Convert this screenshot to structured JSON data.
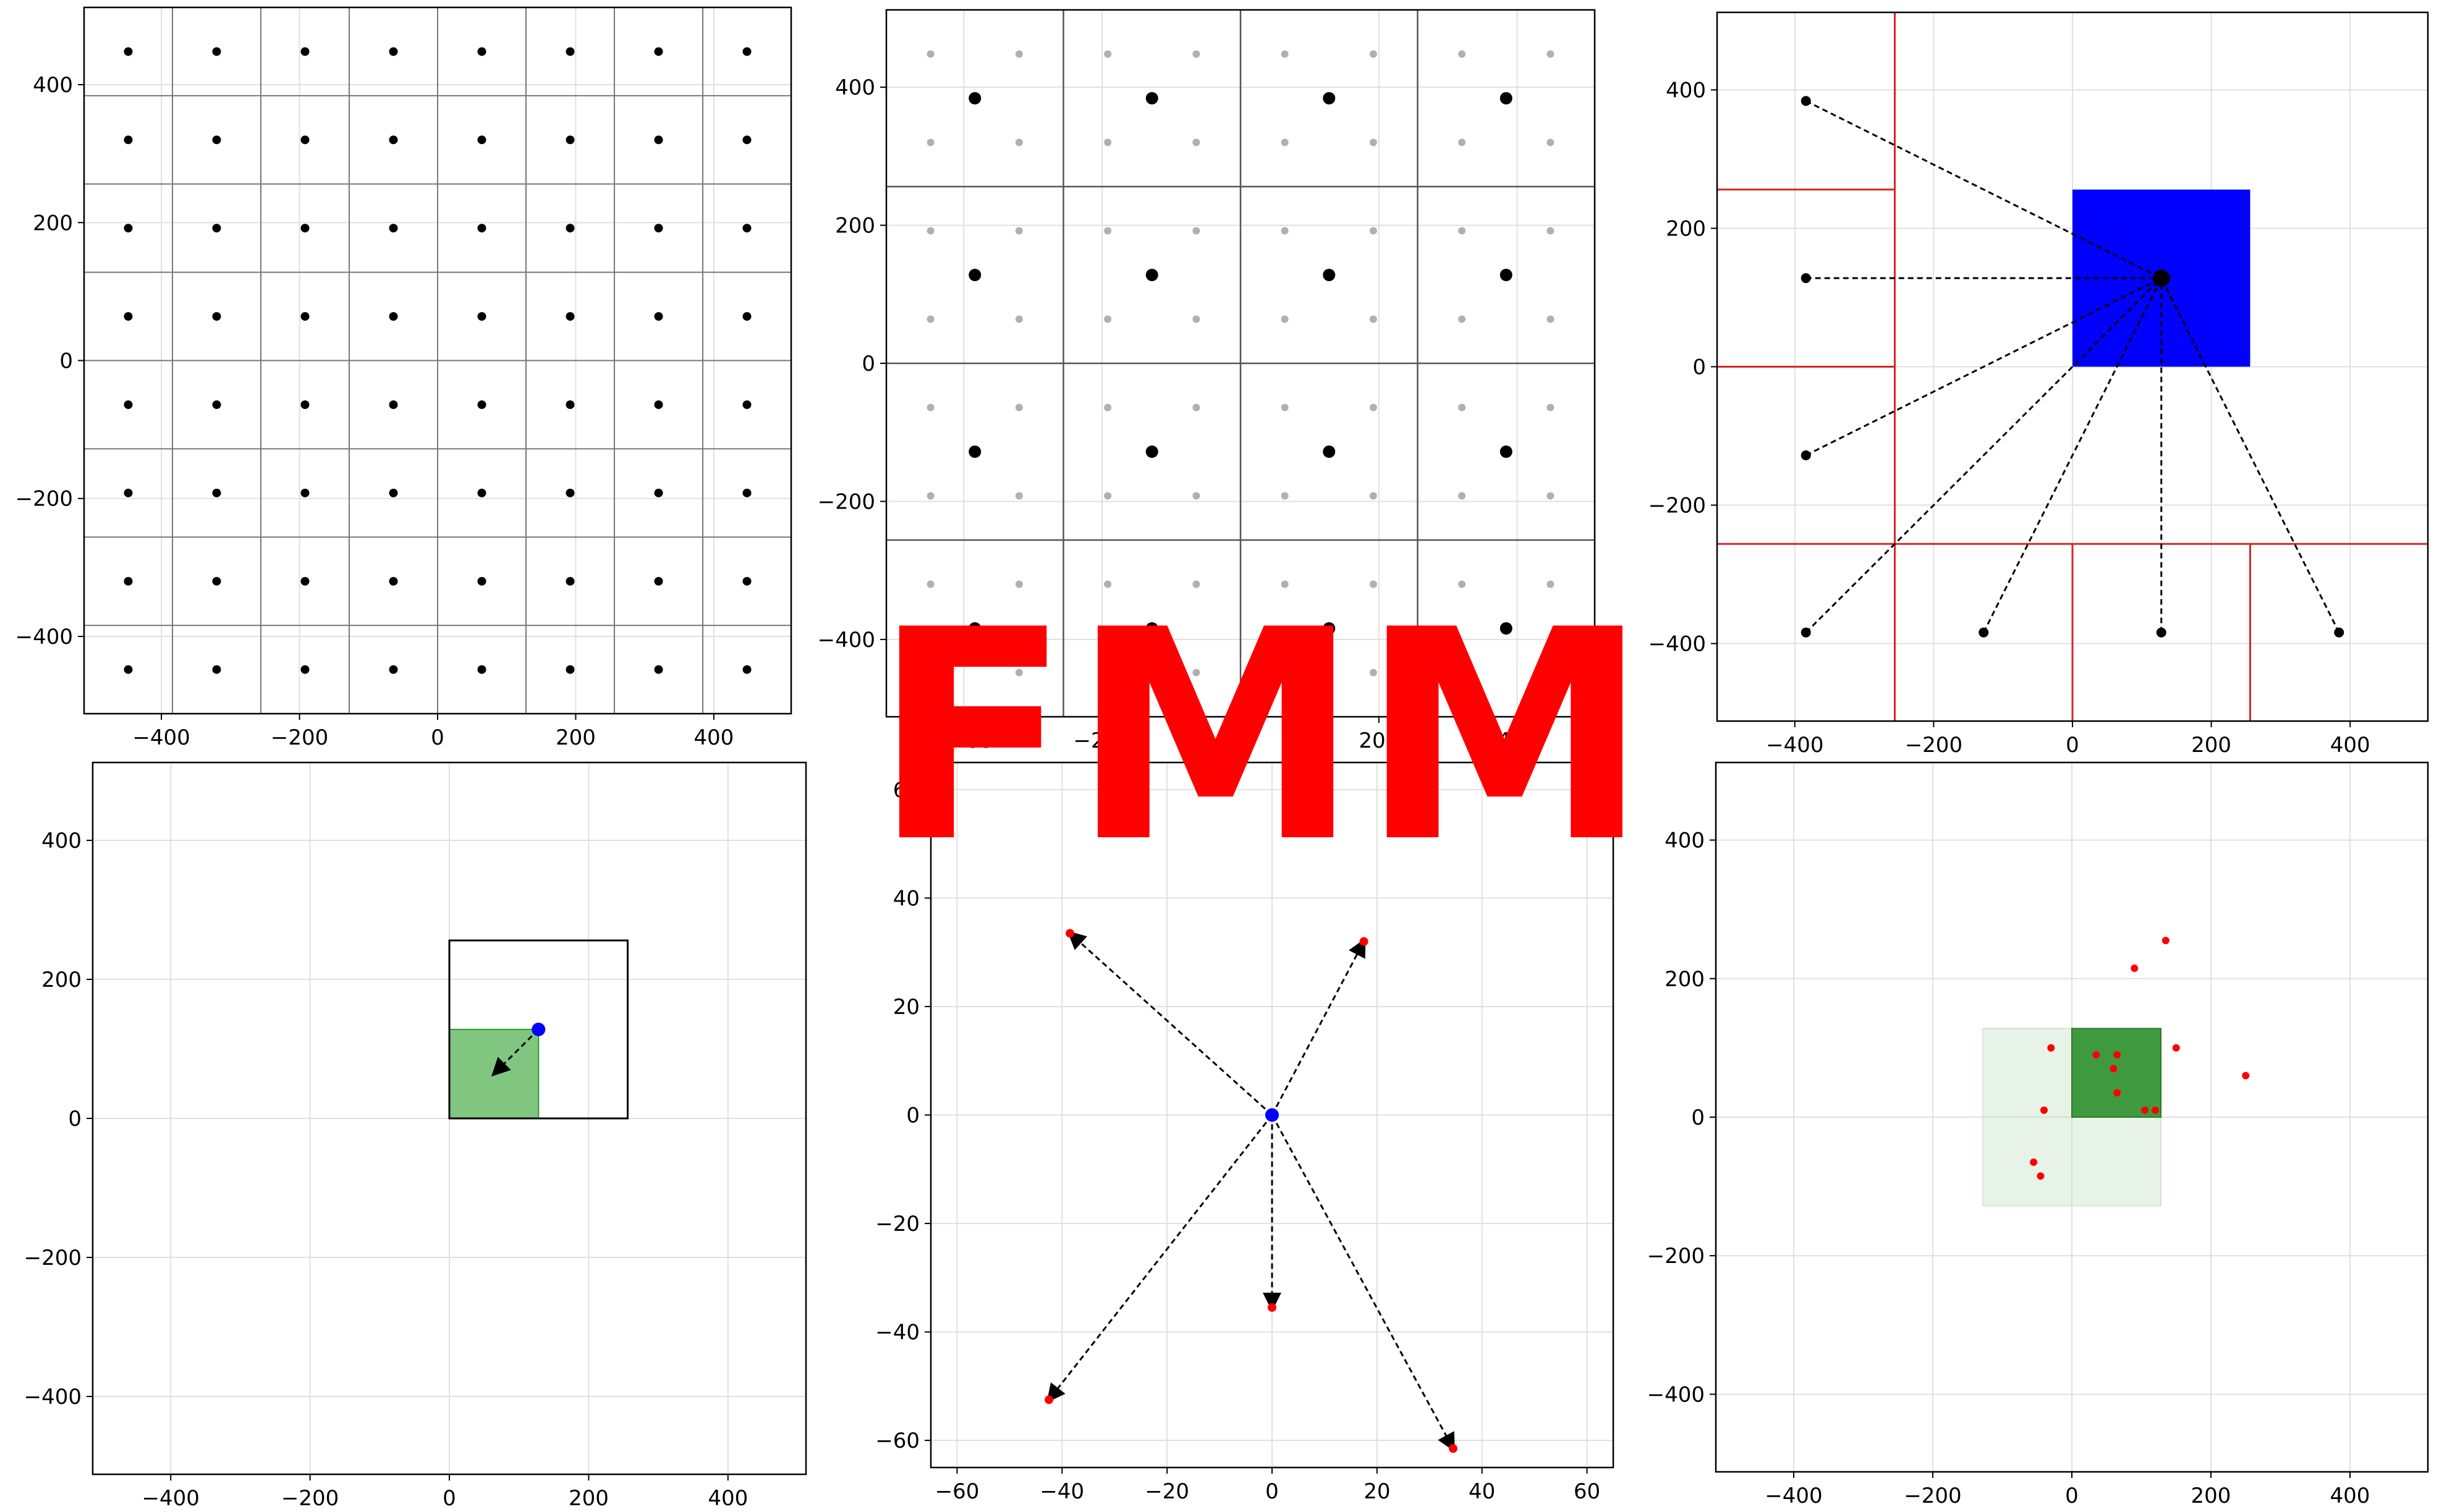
{
  "overlay": {
    "text": "FMM",
    "color": "#ff0000"
  },
  "colors": {
    "point": "#000000",
    "grid": "#e0e0e0",
    "box_red": "#d62728",
    "blue": "#0000ff",
    "green": "#2ca02c",
    "green_light": "#e8f3e8",
    "red_point": "#ff0000",
    "gray_point": "#b0b0b0"
  },
  "chart_data": [
    {
      "id": "p1",
      "type": "scatter",
      "title": "",
      "xlabel": "",
      "ylabel": "",
      "xlim": [
        -512,
        512
      ],
      "ylim": [
        -512,
        512
      ],
      "xticks": [
        -400,
        -200,
        0,
        200,
        400
      ],
      "yticks": [
        -400,
        -200,
        0,
        200,
        400
      ],
      "grid": true,
      "cells": 8,
      "series": [
        {
          "x": [
            -448,
            -320,
            -192,
            -64,
            64,
            192,
            320,
            448
          ],
          "y": [
            -448,
            -320,
            -192,
            -64,
            64,
            192,
            320,
            448
          ],
          "grid_points": true
        }
      ]
    },
    {
      "id": "p2",
      "type": "scatter",
      "title": "",
      "xlabel": "",
      "ylabel": "",
      "xlim": [
        -512,
        512
      ],
      "ylim": [
        -512,
        512
      ],
      "xticks": [
        -400,
        -200,
        0,
        200,
        400
      ],
      "yticks": [
        -400,
        -200,
        0,
        200,
        400
      ],
      "grid": true,
      "cells": 4,
      "series": [
        {
          "name": "",
          "x": [
            -448,
            -320,
            -192,
            -64,
            64,
            192,
            320,
            448
          ],
          "y": [
            -448,
            -320,
            -192,
            -64,
            64,
            192,
            320,
            448
          ],
          "grid_points": true,
          "color": "gray"
        },
        {
          "name": "",
          "x": [
            -384,
            -128,
            128,
            384
          ],
          "y": [
            -384,
            -128,
            128,
            384
          ],
          "grid_points": true,
          "color": "black"
        }
      ]
    },
    {
      "id": "p3",
      "type": "scatter",
      "title": "",
      "xlabel": "",
      "ylabel": "",
      "xlim": [
        -512,
        512
      ],
      "ylim": [
        -512,
        512
      ],
      "xticks": [
        -400,
        -200,
        0,
        200,
        400
      ],
      "yticks": [
        -400,
        -200,
        0,
        200,
        400
      ],
      "grid": true,
      "target_box": [
        0,
        0,
        256,
        256
      ],
      "target_point": [
        128,
        128
      ],
      "sources": [
        [
          -384,
          384
        ],
        [
          -384,
          128
        ],
        [
          -384,
          -128
        ],
        [
          -384,
          -384
        ],
        [
          -128,
          -384
        ],
        [
          128,
          -384
        ],
        [
          384,
          -384
        ]
      ],
      "red_lines": {
        "vertical": [
          [
            -256,
            -512,
            512
          ],
          [
            0,
            -512,
            -256
          ],
          [
            256,
            -512,
            -256
          ]
        ],
        "horizontal": [
          [
            256,
            -512,
            -256
          ],
          [
            0,
            -512,
            -256
          ],
          [
            -256,
            -512,
            512
          ]
        ]
      }
    },
    {
      "id": "p4",
      "type": "scatter",
      "title": "",
      "xlabel": "",
      "ylabel": "",
      "xlim": [
        -512,
        512
      ],
      "ylim": [
        -512,
        512
      ],
      "xticks": [
        -400,
        -200,
        0,
        200,
        400
      ],
      "yticks": [
        -400,
        -200,
        0,
        200,
        400
      ],
      "grid": true,
      "parent_box": [
        0,
        0,
        256,
        256
      ],
      "child_box": [
        0,
        0,
        128,
        128
      ],
      "point": [
        128,
        128
      ],
      "arrow_to": [
        64,
        64
      ]
    },
    {
      "id": "p5",
      "type": "scatter",
      "title": "",
      "xlabel": "",
      "ylabel": "",
      "xlim": [
        -65,
        65
      ],
      "ylim": [
        -65,
        65
      ],
      "xticks": [
        -60,
        -40,
        -20,
        0,
        20,
        40,
        60
      ],
      "yticks": [
        -60,
        -40,
        -20,
        0,
        20,
        40,
        60
      ],
      "grid": true,
      "center": [
        0,
        0
      ],
      "targets": [
        [
          -38.5,
          33.5
        ],
        [
          17.5,
          32
        ],
        [
          0,
          -35.5
        ],
        [
          -42.5,
          -52.5
        ],
        [
          34.5,
          -61.5
        ]
      ]
    },
    {
      "id": "p6",
      "type": "scatter",
      "title": "",
      "xlabel": "",
      "ylabel": "",
      "xlim": [
        -512,
        512
      ],
      "ylim": [
        -512,
        512
      ],
      "xticks": [
        -400,
        -200,
        0,
        200,
        400
      ],
      "yticks": [
        -400,
        -200,
        0,
        200,
        400
      ],
      "grid": true,
      "neighborhood_box": [
        -128,
        -128,
        256,
        256
      ],
      "center_box": [
        0,
        0,
        128,
        128
      ],
      "points": [
        [
          135,
          255
        ],
        [
          90,
          215
        ],
        [
          -30,
          100
        ],
        [
          150,
          100
        ],
        [
          35,
          90
        ],
        [
          65,
          90
        ],
        [
          60,
          70
        ],
        [
          65,
          35
        ],
        [
          -40,
          10
        ],
        [
          105,
          10
        ],
        [
          120,
          10
        ],
        [
          250,
          60
        ],
        [
          -55,
          -65
        ],
        [
          -45,
          -85
        ]
      ]
    }
  ]
}
